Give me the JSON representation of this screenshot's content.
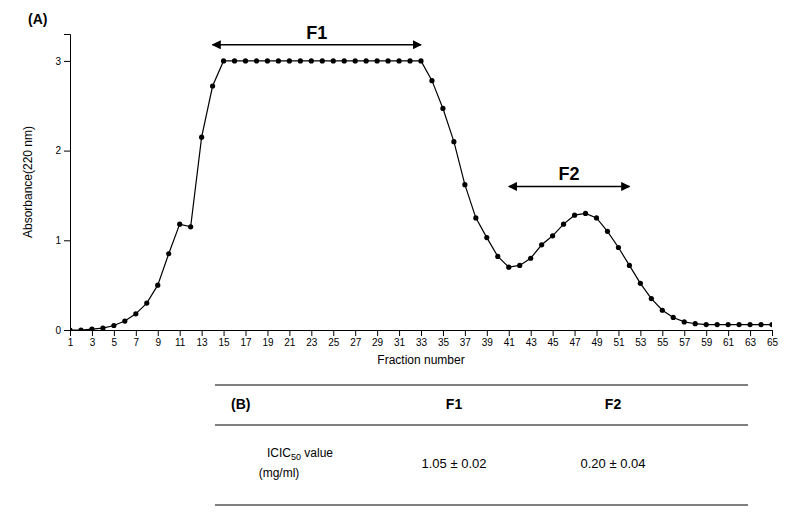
{
  "chart_data": {
    "type": "line",
    "x": [
      1,
      2,
      3,
      4,
      5,
      6,
      7,
      8,
      9,
      10,
      11,
      12,
      13,
      14,
      15,
      16,
      17,
      18,
      19,
      20,
      21,
      22,
      23,
      24,
      25,
      26,
      27,
      28,
      29,
      30,
      31,
      32,
      33,
      34,
      35,
      36,
      37,
      38,
      39,
      40,
      41,
      42,
      43,
      44,
      45,
      46,
      47,
      48,
      49,
      50,
      51,
      52,
      53,
      54,
      55,
      56,
      57,
      58,
      59,
      60,
      61,
      62,
      63,
      64,
      65
    ],
    "values": [
      0.0,
      0.0,
      0.01,
      0.02,
      0.05,
      0.1,
      0.18,
      0.3,
      0.5,
      0.85,
      1.18,
      1.15,
      2.15,
      2.72,
      3.0,
      3.0,
      3.0,
      3.0,
      3.0,
      3.0,
      3.0,
      3.0,
      3.0,
      3.0,
      3.0,
      3.0,
      3.0,
      3.0,
      3.0,
      3.0,
      3.0,
      3.0,
      3.0,
      2.78,
      2.47,
      2.1,
      1.62,
      1.25,
      1.03,
      0.82,
      0.7,
      0.72,
      0.8,
      0.95,
      1.05,
      1.18,
      1.28,
      1.3,
      1.25,
      1.1,
      0.92,
      0.72,
      0.52,
      0.35,
      0.22,
      0.14,
      0.09,
      0.07,
      0.06,
      0.06,
      0.06,
      0.06,
      0.06,
      0.06,
      0.06
    ],
    "xlabel": "Fraction number",
    "ylabel": "Absorbance(220 nm)",
    "xlim": [
      1,
      65
    ],
    "ylim": [
      0,
      3.3
    ],
    "xticks": [
      1,
      3,
      5,
      7,
      9,
      11,
      13,
      15,
      17,
      19,
      21,
      23,
      25,
      27,
      29,
      31,
      33,
      35,
      37,
      39,
      41,
      43,
      45,
      47,
      49,
      51,
      53,
      55,
      57,
      59,
      61,
      63,
      65
    ],
    "yticks": [
      0,
      1,
      2,
      3
    ],
    "color": "#000000",
    "marker": "o",
    "annotations": [
      {
        "text": "(A)"
      },
      {
        "text": "F1",
        "x1": 14,
        "x2": 33,
        "y": 3.18
      },
      {
        "text": "F2",
        "x1": 41,
        "x2": 52,
        "y": 1.6
      }
    ],
    "table": {
      "header": [
        "(B)",
        "F1",
        "F2"
      ],
      "row_label": [
        "IC",
        "IC",
        "50",
        " value"
      ],
      "row_sublabel": "(mg/ml)",
      "values": [
        "1.05 ± 0.02",
        "0.20 ± 0.04"
      ]
    }
  }
}
